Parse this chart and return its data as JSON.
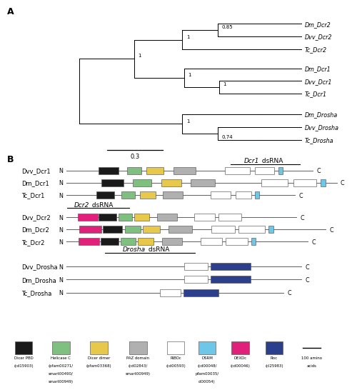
{
  "legend_items": [
    {
      "label": "Dicer PBD\n(cd15903)",
      "color": "#1a1a1a"
    },
    {
      "label": "Helicase C\n(pfam00271/\nsmart00490/\nsmart00949)",
      "color": "#7fbf7f"
    },
    {
      "label": "Dicer dimer\n(pfam03368)",
      "color": "#e8c84a"
    },
    {
      "label": "PAZ domain\n(cd02843/\nsmart00949)",
      "color": "#b0b0b0"
    },
    {
      "label": "RIBOc\n(cd00593)",
      "color": "#ffffff"
    },
    {
      "label": "DSRM\n(cd00048/\npfam00035/\ncl00054)",
      "color": "#6ec6e8"
    },
    {
      "label": "DEXDc\n(cd00046)",
      "color": "#e0207a"
    },
    {
      "label": "Rnc\n(cl25983)",
      "color": "#2b3f8c"
    },
    {
      "label": "100 amino\nacids",
      "color": "line"
    }
  ],
  "taxa_y": {
    "Dm_Dcr2": 9.5,
    "Dvv_Dcr2": 8.7,
    "Tc_Dcr2": 7.9,
    "Dm_Dcr1": 6.7,
    "Dvv_Dcr1": 5.9,
    "Tc_Dcr1": 5.1,
    "Dm_Drosha": 3.8,
    "Dvv_Drosha": 3.0,
    "Tc_Drosha": 2.2
  },
  "proteins": [
    {
      "name": "Dvv_Dcr1",
      "group": "Dcr1",
      "xr": 0.91,
      "domains": [
        {
          "s": 0.13,
          "e": 0.21,
          "c": "#1a1a1a"
        },
        {
          "s": 0.245,
          "e": 0.305,
          "c": "#7fbf7f"
        },
        {
          "s": 0.325,
          "e": 0.395,
          "c": "#e8c84a"
        },
        {
          "s": 0.435,
          "e": 0.525,
          "c": "#b0b0b0"
        },
        {
          "s": 0.645,
          "e": 0.745,
          "c": "#ffffff"
        },
        {
          "s": 0.765,
          "e": 0.845,
          "c": "#ffffff"
        },
        {
          "s": 0.86,
          "e": 0.88,
          "c": "#6ec6e8"
        }
      ]
    },
    {
      "name": "Dm_Dcr1",
      "group": "Dcr1",
      "xr": 0.985,
      "domains": [
        {
          "s": 0.13,
          "e": 0.21,
          "c": "#1a1a1a"
        },
        {
          "s": 0.245,
          "e": 0.315,
          "c": "#7fbf7f"
        },
        {
          "s": 0.35,
          "e": 0.425,
          "c": "#e8c84a"
        },
        {
          "s": 0.46,
          "e": 0.55,
          "c": "#b0b0b0"
        },
        {
          "s": 0.72,
          "e": 0.82,
          "c": "#ffffff"
        },
        {
          "s": 0.84,
          "e": 0.925,
          "c": "#ffffff"
        },
        {
          "s": 0.94,
          "e": 0.96,
          "c": "#6ec6e8"
        }
      ]
    },
    {
      "name": "Tc_Dcr1",
      "group": "Dcr1",
      "xr": 0.855,
      "domains": [
        {
          "s": 0.13,
          "e": 0.21,
          "c": "#1a1a1a"
        },
        {
          "s": 0.24,
          "e": 0.3,
          "c": "#7fbf7f"
        },
        {
          "s": 0.32,
          "e": 0.39,
          "c": "#e8c84a"
        },
        {
          "s": 0.42,
          "e": 0.51,
          "c": "#b0b0b0"
        },
        {
          "s": 0.63,
          "e": 0.72,
          "c": "#ffffff"
        },
        {
          "s": 0.74,
          "e": 0.81,
          "c": "#ffffff"
        },
        {
          "s": 0.825,
          "e": 0.845,
          "c": "#6ec6e8"
        }
      ]
    },
    {
      "name": "Dvv_Dcr2",
      "group": "Dcr2",
      "xr": 0.86,
      "domains": [
        {
          "s": 0.05,
          "e": 0.135,
          "c": "#e0207a"
        },
        {
          "s": 0.14,
          "e": 0.215,
          "c": "#1a1a1a"
        },
        {
          "s": 0.225,
          "e": 0.285,
          "c": "#7fbf7f"
        },
        {
          "s": 0.295,
          "e": 0.36,
          "c": "#e8c84a"
        },
        {
          "s": 0.395,
          "e": 0.48,
          "c": "#b0b0b0"
        },
        {
          "s": 0.555,
          "e": 0.645,
          "c": "#ffffff"
        },
        {
          "s": 0.66,
          "e": 0.76,
          "c": "#ffffff"
        }
      ]
    },
    {
      "name": "Dm_Dcr2",
      "group": "Dcr2",
      "xr": 0.95,
      "domains": [
        {
          "s": 0.05,
          "e": 0.135,
          "c": "#e0207a"
        },
        {
          "s": 0.14,
          "e": 0.215,
          "c": "#1a1a1a"
        },
        {
          "s": 0.225,
          "e": 0.285,
          "c": "#7fbf7f"
        },
        {
          "s": 0.295,
          "e": 0.36,
          "c": "#e8c84a"
        },
        {
          "s": 0.395,
          "e": 0.485,
          "c": "#b0b0b0"
        },
        {
          "s": 0.56,
          "e": 0.65,
          "c": "#ffffff"
        },
        {
          "s": 0.665,
          "e": 0.765,
          "c": "#ffffff"
        },
        {
          "s": 0.78,
          "e": 0.8,
          "c": "#6ec6e8"
        }
      ]
    },
    {
      "name": "Tc_Dcr2",
      "group": "Dcr2",
      "xr": 0.895,
      "domains": [
        {
          "s": 0.05,
          "e": 0.135,
          "c": "#e0207a"
        },
        {
          "s": 0.14,
          "e": 0.215,
          "c": "#1a1a1a"
        },
        {
          "s": 0.225,
          "e": 0.285,
          "c": "#7fbf7f"
        },
        {
          "s": 0.295,
          "e": 0.36,
          "c": "#e8c84a"
        },
        {
          "s": 0.395,
          "e": 0.48,
          "c": "#b0b0b0"
        },
        {
          "s": 0.555,
          "e": 0.645,
          "c": "#ffffff"
        },
        {
          "s": 0.66,
          "e": 0.75,
          "c": "#ffffff"
        },
        {
          "s": 0.765,
          "e": 0.785,
          "c": "#6ec6e8"
        }
      ]
    },
    {
      "name": "Dvv_Drosha",
      "group": "Drosha",
      "xr": 0.875,
      "domains": [
        {
          "s": 0.5,
          "e": 0.6,
          "c": "#ffffff"
        },
        {
          "s": 0.615,
          "e": 0.785,
          "c": "#2b3f8c"
        }
      ]
    },
    {
      "name": "Dm_Drosha",
      "group": "Drosha",
      "xr": 0.875,
      "domains": [
        {
          "s": 0.5,
          "e": 0.6,
          "c": "#ffffff"
        },
        {
          "s": 0.615,
          "e": 0.785,
          "c": "#2b3f8c"
        }
      ]
    },
    {
      "name": "Tc_Drosha",
      "group": "Drosha",
      "xr": 0.82,
      "domains": [
        {
          "s": 0.43,
          "e": 0.525,
          "c": "#ffffff"
        },
        {
          "s": 0.54,
          "e": 0.7,
          "c": "#2b3f8c"
        }
      ]
    }
  ]
}
